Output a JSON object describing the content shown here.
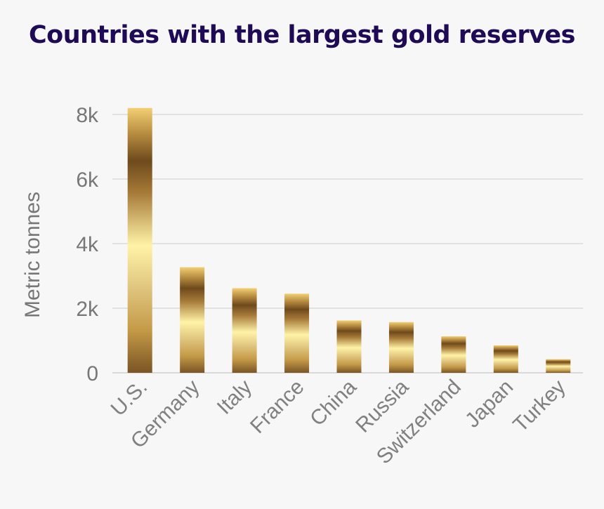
{
  "chart_data": {
    "type": "bar",
    "title": "Countries with the largest gold reserves",
    "ylabel": "Metric tonnes",
    "xlabel": "",
    "categories": [
      "U.S.",
      "Germany",
      "Italy",
      "France",
      "China",
      "Russia",
      "Switzerland",
      "Japan",
      "Turkey"
    ],
    "values": [
      8200,
      3270,
      2620,
      2450,
      1620,
      1570,
      1130,
      850,
      420
    ],
    "ylim": [
      0,
      8000
    ],
    "yticks": [
      0,
      2000,
      4000,
      6000,
      8000
    ],
    "ytick_labels": [
      "0",
      "2k",
      "4k",
      "6k",
      "8k"
    ],
    "grid": true,
    "legend": "none",
    "colors": {
      "title": "#1f0b55",
      "grid": "#cccccc",
      "text": "#777777",
      "gold_dark": "#6e4a1c",
      "gold_mid": "#c49a47",
      "gold_light": "#fff3a8"
    }
  }
}
